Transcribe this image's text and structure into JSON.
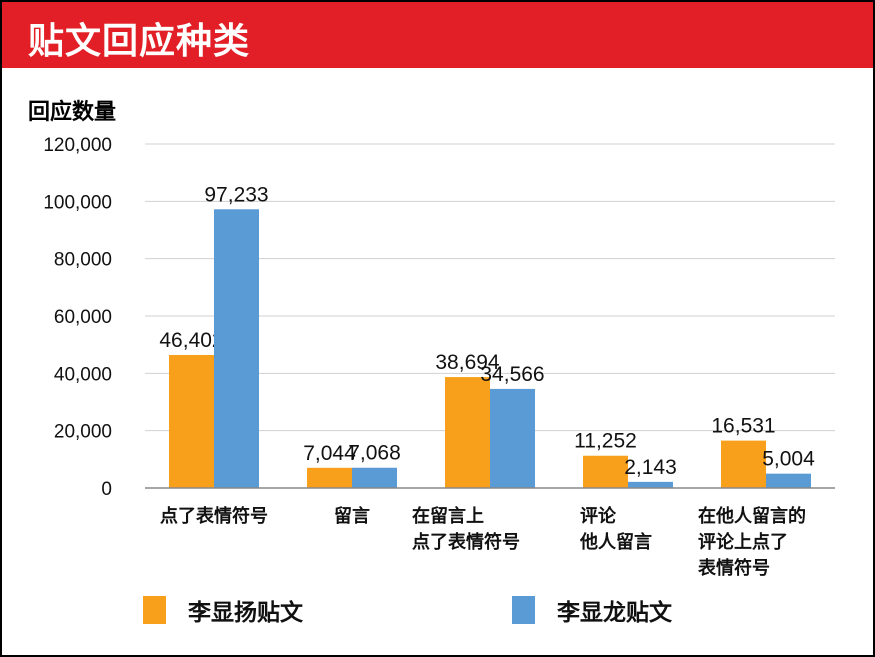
{
  "header": {
    "title": "贴文回应种类"
  },
  "chart_data": {
    "type": "bar",
    "title": "贴文回应种类",
    "ylabel": "回应数量",
    "xlabel": "",
    "ylim": [
      0,
      120000
    ],
    "yticks": [
      0,
      20000,
      40000,
      60000,
      80000,
      100000,
      120000
    ],
    "ytick_labels": [
      "0",
      "20,000",
      "40,000",
      "60,000",
      "80,000",
      "100,000",
      "120,000"
    ],
    "grid": true,
    "legend_placement": "bottom",
    "categories": [
      [
        "点了表情符号"
      ],
      [
        "留言"
      ],
      [
        "在留言上",
        "点了表情符号"
      ],
      [
        "评论",
        "他人留言"
      ],
      [
        "在他人留言的",
        "评论上点了",
        "表情符号"
      ]
    ],
    "series": [
      {
        "name": "李显扬贴文",
        "color": "#f8a01c",
        "values": [
          46402,
          7044,
          38694,
          11252,
          16531
        ],
        "labels": [
          "46,402",
          "7,044",
          "38,694",
          "11,252",
          "16,531"
        ]
      },
      {
        "name": "李显龙贴文",
        "color": "#5b9bd5",
        "values": [
          97233,
          7068,
          34566,
          2143,
          5004
        ],
        "labels": [
          "97,233",
          "7,068",
          "34,566",
          "2,143",
          "5,004"
        ]
      }
    ]
  }
}
